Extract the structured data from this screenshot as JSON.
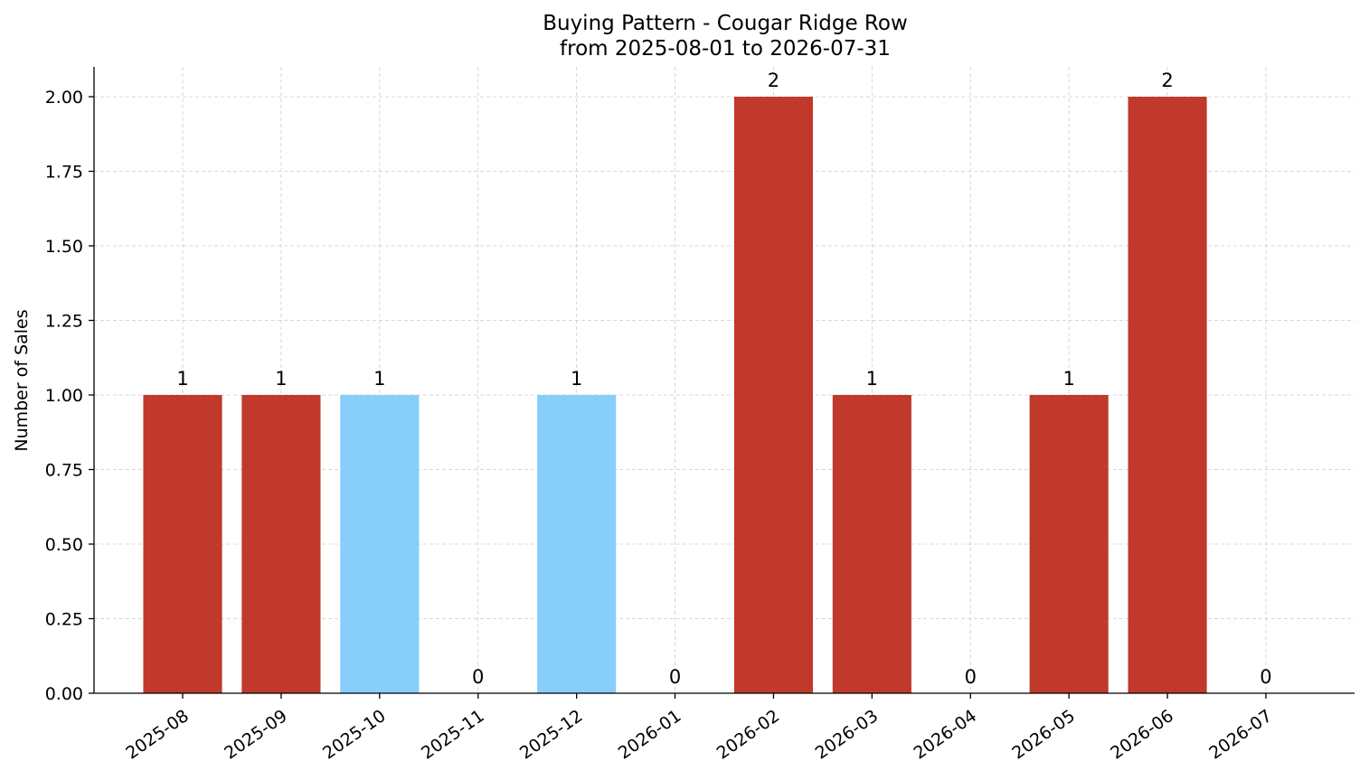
{
  "chart_data": {
    "type": "bar",
    "title": "Buying Pattern - Cougar Ridge Row",
    "subtitle": "from 2025-08-01 to 2026-07-31",
    "xlabel": "",
    "ylabel": "Number of Sales",
    "categories": [
      "2025-08",
      "2025-09",
      "2025-10",
      "2025-11",
      "2025-12",
      "2026-01",
      "2026-02",
      "2026-03",
      "2026-04",
      "2026-05",
      "2026-06",
      "2026-07"
    ],
    "values": [
      1,
      1,
      1,
      0,
      1,
      0,
      2,
      1,
      0,
      1,
      2,
      0
    ],
    "bar_colors": [
      "#c0392b",
      "#c0392b",
      "#87cefa",
      "#c0392b",
      "#87cefa",
      "#c0392b",
      "#c0392b",
      "#c0392b",
      "#c0392b",
      "#c0392b",
      "#c0392b",
      "#c0392b"
    ],
    "data_labels": [
      "1",
      "1",
      "1",
      "0",
      "1",
      "0",
      "2",
      "1",
      "0",
      "1",
      "2",
      "0"
    ],
    "ylim": [
      0,
      2.1
    ],
    "yticks": [
      0,
      0.25,
      0.5,
      0.75,
      1.0,
      1.25,
      1.5,
      1.75,
      2.0
    ],
    "ytick_labels": [
      "0.00",
      "0.25",
      "0.50",
      "0.75",
      "1.00",
      "1.25",
      "1.50",
      "1.75",
      "2.00"
    ],
    "grid": true,
    "legend": "none"
  }
}
